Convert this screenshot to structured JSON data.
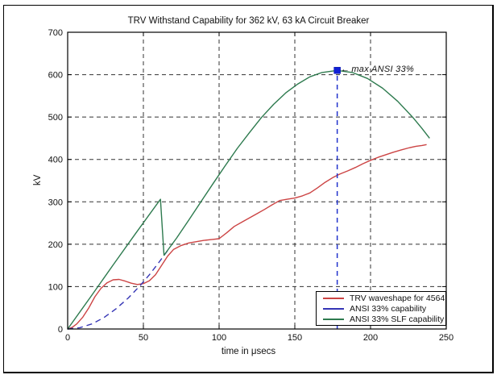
{
  "chart_data": {
    "type": "line",
    "title": "TRV Withstand Capability for 362 kV, 63 kA Circuit Breaker",
    "xlabel": "time in μsecs",
    "ylabel": "kV",
    "xlim": [
      0,
      250
    ],
    "ylim": [
      0,
      700
    ],
    "xticks": [
      0,
      50,
      100,
      150,
      200,
      250
    ],
    "yticks": [
      0,
      100,
      200,
      300,
      400,
      500,
      600,
      700
    ],
    "grid": "dashed",
    "grid_color": "#333333",
    "legend_position": "bottom-right",
    "series": [
      {
        "name": "TRV waveshape for 4564",
        "color": "#cc4444",
        "style": "solid",
        "points": [
          [
            0,
            0
          ],
          [
            3,
            4
          ],
          [
            6,
            12
          ],
          [
            10,
            28
          ],
          [
            14,
            50
          ],
          [
            18,
            76
          ],
          [
            22,
            96
          ],
          [
            26,
            109
          ],
          [
            30,
            116
          ],
          [
            34,
            117
          ],
          [
            38,
            113
          ],
          [
            42,
            108
          ],
          [
            46,
            105
          ],
          [
            50,
            107
          ],
          [
            54,
            114
          ],
          [
            58,
            128
          ],
          [
            62,
            150
          ],
          [
            66,
            172
          ],
          [
            70,
            188
          ],
          [
            75,
            197
          ],
          [
            80,
            203
          ],
          [
            85,
            206
          ],
          [
            90,
            209
          ],
          [
            95,
            211
          ],
          [
            100,
            213
          ],
          [
            105,
            227
          ],
          [
            110,
            242
          ],
          [
            115,
            252
          ],
          [
            120,
            262
          ],
          [
            125,
            272
          ],
          [
            130,
            282
          ],
          [
            135,
            293
          ],
          [
            140,
            303
          ],
          [
            145,
            306
          ],
          [
            150,
            309
          ],
          [
            155,
            314
          ],
          [
            160,
            321
          ],
          [
            165,
            333
          ],
          [
            170,
            346
          ],
          [
            175,
            357
          ],
          [
            180,
            366
          ],
          [
            185,
            373
          ],
          [
            190,
            381
          ],
          [
            195,
            390
          ],
          [
            200,
            398
          ],
          [
            205,
            405
          ],
          [
            210,
            411
          ],
          [
            215,
            417
          ],
          [
            220,
            422
          ],
          [
            225,
            427
          ],
          [
            230,
            431
          ],
          [
            234,
            433
          ],
          [
            237,
            435
          ]
        ]
      },
      {
        "name": "ANSI 33% capability",
        "color": "#3535b5",
        "style": "dashed",
        "points": [
          [
            0,
            0
          ],
          [
            8,
            3
          ],
          [
            16,
            12
          ],
          [
            24,
            27
          ],
          [
            32,
            48
          ],
          [
            40,
            73
          ],
          [
            48,
            103
          ],
          [
            54,
            128
          ],
          [
            60,
            156
          ],
          [
            66,
            185
          ]
        ]
      },
      {
        "name": "ANSI 33% SLF capability",
        "color": "#2d7a4e",
        "style": "solid",
        "points": [
          [
            0,
            0
          ],
          [
            15,
            75
          ],
          [
            30,
            151
          ],
          [
            45,
            226
          ],
          [
            61.3,
            306
          ],
          [
            63.6,
            174
          ],
          [
            72,
            215
          ],
          [
            80,
            257
          ],
          [
            88,
            300
          ],
          [
            96,
            343
          ],
          [
            104,
            385
          ],
          [
            112,
            426
          ],
          [
            120,
            463
          ],
          [
            128,
            499
          ],
          [
            136,
            530
          ],
          [
            144,
            557
          ],
          [
            152,
            578
          ],
          [
            160,
            595
          ],
          [
            168,
            605
          ],
          [
            178,
            610
          ],
          [
            188,
            605
          ],
          [
            198,
            591
          ],
          [
            208,
            568
          ],
          [
            218,
            537
          ],
          [
            228,
            499
          ],
          [
            234,
            473
          ],
          [
            239,
            450
          ]
        ]
      }
    ],
    "annotation": {
      "label": "max ANSI 33%",
      "arrow": "←",
      "x": 178,
      "y": 610,
      "marker": "filled-square",
      "marker_color": "#1021d6",
      "guide_line_color": "#2233cc"
    }
  }
}
